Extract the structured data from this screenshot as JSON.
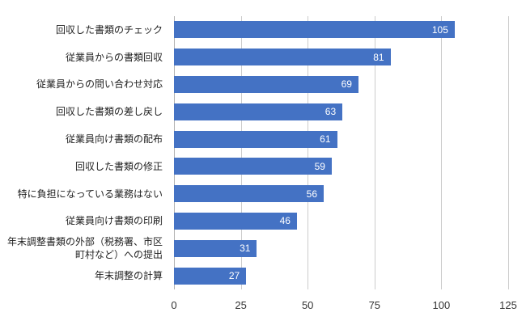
{
  "chart_data": {
    "type": "bar",
    "orientation": "horizontal",
    "title": "",
    "xlabel": "",
    "ylabel": "",
    "categories": [
      "回収した書類のチェック",
      "従業員からの書類回収",
      "従業員からの問い合わせ対応",
      "回収した書類の差し戻し",
      "従業員向け書類の配布",
      "回収した書類の修正",
      "特に負担になっている業務はない",
      "従業員向け書類の印刷",
      "年末調整書類の外部（税務署、市区町村など）への提出",
      "年末調整の計算"
    ],
    "values": [
      105,
      81,
      69,
      63,
      61,
      59,
      56,
      46,
      31,
      27
    ],
    "value_labels": [
      "105",
      "81",
      "69",
      "63",
      "61",
      "59",
      "56",
      "46",
      "31",
      "27"
    ],
    "xlim": [
      0,
      125
    ],
    "xticks": [
      0,
      25,
      50,
      75,
      100,
      125
    ],
    "xtick_labels": [
      "0",
      "25",
      "50",
      "75",
      "100",
      "125"
    ],
    "grid": true,
    "legend": "none",
    "colors": {
      "bar": "#4472c4",
      "value_label": "#ffffff",
      "gridline": "#cccccc",
      "category_label": "#1f1f1f",
      "tick_label": "#333333",
      "background": "#ffffff"
    }
  }
}
